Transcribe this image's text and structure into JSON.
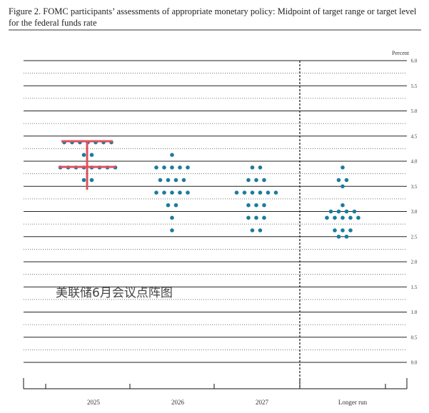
{
  "chart_data": {
    "type": "dot",
    "title": "Figure 2. FOMC participants’ assessments of appropriate monetary policy: Midpoint of target range or target level for the federal funds rate",
    "y_label": "Percent",
    "watermark": "美联储6月会议点阵图",
    "ylim": [
      0,
      6
    ],
    "yticks": [
      {
        "value": 0,
        "label": "0.0"
      },
      {
        "value": 0.5,
        "label": "0.5"
      },
      {
        "value": 1,
        "label": "1.0"
      },
      {
        "value": 1.5,
        "label": "1.5"
      },
      {
        "value": 2,
        "label": "2.0"
      },
      {
        "value": 2.5,
        "label": "2.5"
      },
      {
        "value": 3,
        "label": "3.0"
      },
      {
        "value": 3.5,
        "label": "3.5"
      },
      {
        "value": 4,
        "label": "4.0"
      },
      {
        "value": 4.5,
        "label": "4.5"
      },
      {
        "value": 5,
        "label": "5.0"
      },
      {
        "value": 5.5,
        "label": "5.5"
      },
      {
        "value": 6,
        "label": "6.0"
      }
    ],
    "yminorticks": [
      0.25,
      0.75,
      1.25,
      1.75,
      2.25,
      2.75,
      3.25,
      3.75,
      4.25,
      4.75,
      5.25,
      5.75
    ],
    "color": "#1b7c9c",
    "columns": [
      {
        "label": "2025",
        "dots": [
          {
            "value": 4.375,
            "count": 7
          },
          {
            "value": 4.125,
            "count": 2
          },
          {
            "value": 3.875,
            "count": 8
          },
          {
            "value": 3.625,
            "count": 2
          }
        ]
      },
      {
        "label": "2026",
        "dots": [
          {
            "value": 4.125,
            "count": 1
          },
          {
            "value": 3.875,
            "count": 5
          },
          {
            "value": 3.625,
            "count": 4
          },
          {
            "value": 3.375,
            "count": 5
          },
          {
            "value": 3.125,
            "count": 2
          },
          {
            "value": 2.875,
            "count": 1
          },
          {
            "value": 2.625,
            "count": 1
          }
        ]
      },
      {
        "label": "2027",
        "dots": [
          {
            "value": 3.875,
            "count": 2
          },
          {
            "value": 3.625,
            "count": 3
          },
          {
            "value": 3.375,
            "count": 6
          },
          {
            "value": 3.125,
            "count": 3
          },
          {
            "value": 2.875,
            "count": 3
          },
          {
            "value": 2.625,
            "count": 2
          }
        ]
      },
      {
        "label": "Longer run",
        "dots": [
          {
            "value": 3.875,
            "count": 1
          },
          {
            "value": 3.625,
            "count": 2
          },
          {
            "value": 3.5,
            "count": 1
          },
          {
            "value": 3.125,
            "count": 1
          },
          {
            "value": 3,
            "count": 4
          },
          {
            "value": 2.875,
            "count": 5
          },
          {
            "value": 2.625,
            "count": 3
          },
          {
            "value": 2.5,
            "count": 2
          }
        ]
      }
    ]
  }
}
